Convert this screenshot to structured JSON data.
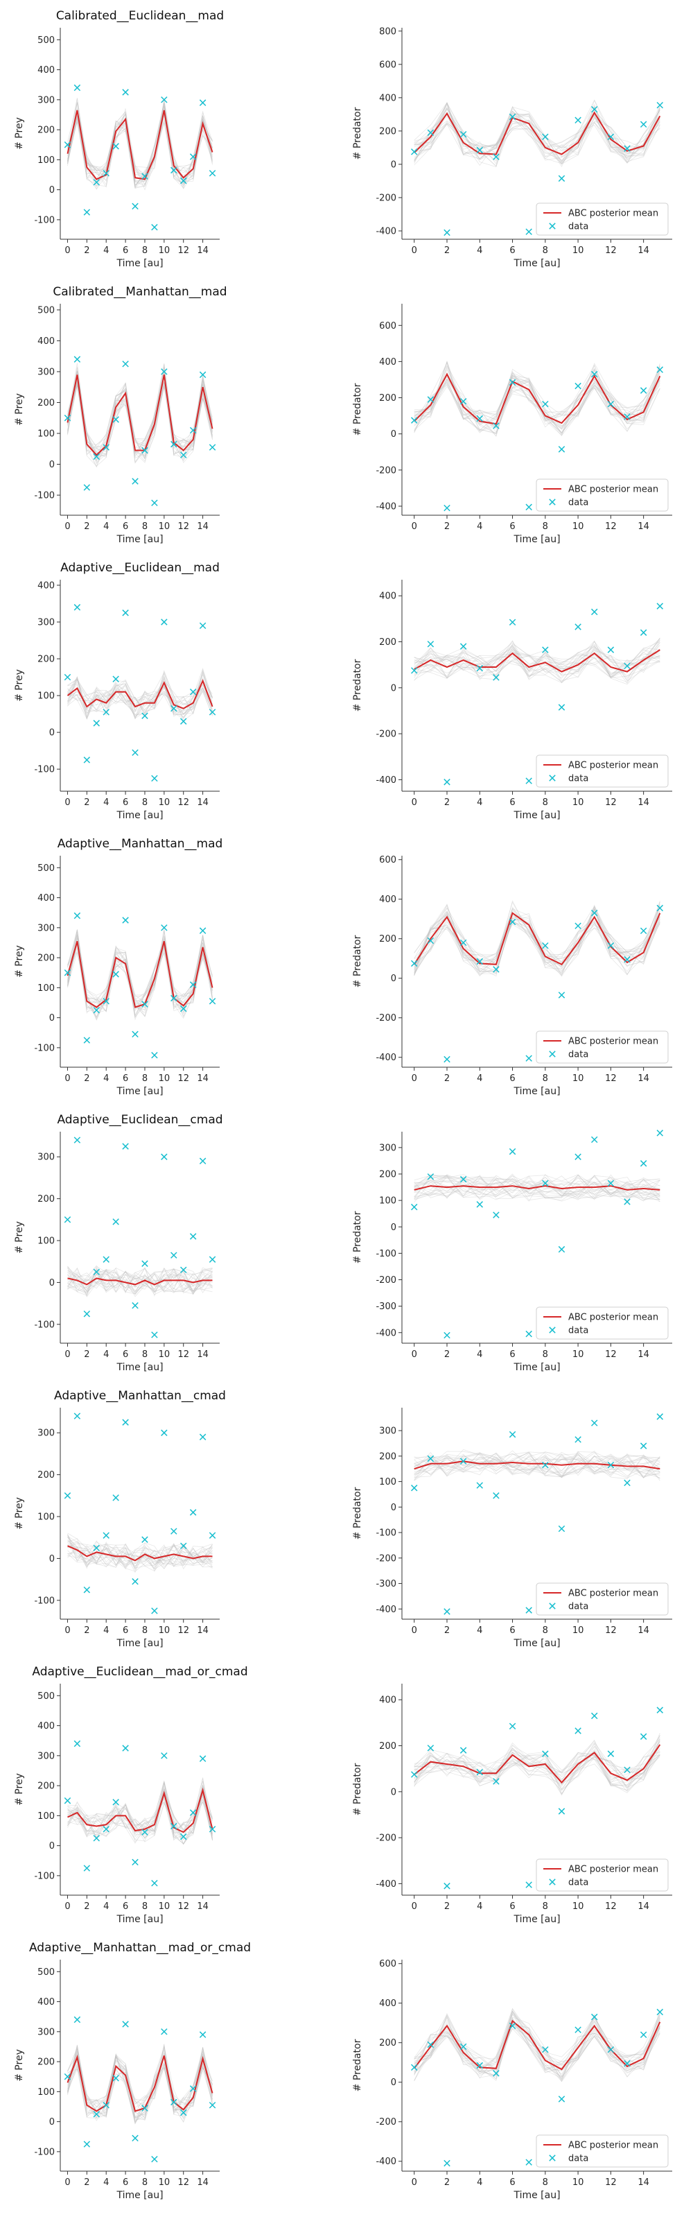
{
  "figure": {
    "title": ""
  },
  "colors": {
    "mean": "#d62728",
    "data": "#17becf",
    "ensemble": "#bdbdbd",
    "axis": "#333333"
  },
  "legend": {
    "mean_label": "ABC posterior mean",
    "data_label": "data"
  },
  "chart_data": {
    "type": "line",
    "xlabel": "Time [au]",
    "x": [
      0,
      1,
      2,
      3,
      4,
      5,
      6,
      7,
      8,
      9,
      10,
      11,
      12,
      13,
      14,
      15
    ],
    "xticks": [
      0,
      2,
      4,
      6,
      8,
      10,
      12,
      14
    ],
    "xlim": [
      -0.75,
      15.75
    ],
    "observed": {
      "prey": [
        150,
        340,
        -75,
        25,
        55,
        145,
        325,
        -55,
        45,
        -125,
        300,
        65,
        30,
        110,
        290,
        55
      ],
      "predator": [
        75,
        190,
        -410,
        180,
        85,
        45,
        285,
        -405,
        165,
        -85,
        265,
        330,
        165,
        95,
        240,
        355
      ]
    },
    "rows": [
      {
        "title": "Calibrated__Euclidean__mad",
        "prey": {
          "ylabel": "# Prey",
          "ylim": [
            -165,
            540
          ],
          "yticks": [
            -100,
            0,
            100,
            200,
            300,
            400,
            500
          ],
          "mean": [
            120,
            265,
            75,
            35,
            50,
            195,
            235,
            40,
            35,
            110,
            265,
            80,
            40,
            70,
            220,
            125
          ]
        },
        "predator": {
          "ylabel": "# Predator",
          "ylim": [
            -450,
            820
          ],
          "yticks": [
            -400,
            -200,
            0,
            200,
            400,
            600,
            800
          ],
          "mean": [
            70,
            165,
            305,
            130,
            65,
            60,
            280,
            245,
            100,
            60,
            130,
            310,
            150,
            80,
            110,
            290
          ]
        }
      },
      {
        "title": "Calibrated__Manhattan__mad",
        "prey": {
          "ylabel": "# Prey",
          "ylim": [
            -165,
            520
          ],
          "yticks": [
            -100,
            0,
            100,
            200,
            300,
            400,
            500
          ],
          "mean": [
            135,
            290,
            65,
            30,
            60,
            185,
            230,
            45,
            45,
            130,
            290,
            70,
            45,
            80,
            250,
            115
          ]
        },
        "predator": {
          "ylabel": "# Predator",
          "ylim": [
            -450,
            720
          ],
          "yticks": [
            -400,
            -200,
            0,
            200,
            400,
            600
          ],
          "mean": [
            70,
            160,
            330,
            150,
            70,
            55,
            290,
            245,
            100,
            60,
            160,
            320,
            160,
            80,
            120,
            320
          ]
        }
      },
      {
        "title": "Adaptive__Euclidean__mad",
        "prey": {
          "ylabel": "# Prey",
          "ylim": [
            -160,
            415
          ],
          "yticks": [
            -100,
            0,
            100,
            200,
            300,
            400
          ],
          "mean": [
            100,
            120,
            70,
            90,
            80,
            110,
            110,
            70,
            80,
            80,
            135,
            75,
            65,
            80,
            140,
            70
          ]
        },
        "predator": {
          "ylabel": "# Predator",
          "ylim": [
            -450,
            470
          ],
          "yticks": [
            -400,
            -200,
            0,
            200,
            400
          ],
          "mean": [
            80,
            120,
            90,
            120,
            90,
            90,
            150,
            90,
            110,
            70,
            100,
            150,
            90,
            70,
            120,
            165
          ]
        }
      },
      {
        "title": "Adaptive__Manhattan__mad",
        "prey": {
          "ylabel": "# Prey",
          "ylim": [
            -165,
            540
          ],
          "yticks": [
            -100,
            0,
            100,
            200,
            300,
            400,
            500
          ],
          "mean": [
            140,
            255,
            55,
            35,
            60,
            200,
            180,
            35,
            45,
            130,
            255,
            65,
            40,
            80,
            235,
            100
          ]
        },
        "predator": {
          "ylabel": "# Predator",
          "ylim": [
            -450,
            620
          ],
          "yticks": [
            -400,
            -200,
            0,
            200,
            400,
            600
          ],
          "mean": [
            70,
            200,
            310,
            150,
            75,
            70,
            330,
            270,
            110,
            70,
            180,
            310,
            160,
            80,
            130,
            330
          ]
        }
      },
      {
        "title": "Adaptive__Euclidean__cmad",
        "prey": {
          "ylabel": "# Prey",
          "ylim": [
            -145,
            360
          ],
          "yticks": [
            -100,
            0,
            100,
            200,
            300
          ],
          "mean": [
            10,
            5,
            -5,
            10,
            5,
            5,
            0,
            -5,
            5,
            -5,
            5,
            5,
            5,
            0,
            5,
            5
          ]
        },
        "predator": {
          "ylabel": "# Predator",
          "ylim": [
            -440,
            360
          ],
          "yticks": [
            -400,
            -300,
            -200,
            -100,
            0,
            100,
            200,
            300
          ],
          "mean": [
            140,
            155,
            150,
            155,
            150,
            150,
            155,
            145,
            155,
            145,
            150,
            150,
            155,
            140,
            145,
            140
          ]
        }
      },
      {
        "title": "Adaptive__Manhattan__cmad",
        "prey": {
          "ylabel": "# Prey",
          "ylim": [
            -145,
            360
          ],
          "yticks": [
            -100,
            0,
            100,
            200,
            300
          ],
          "mean": [
            30,
            20,
            5,
            15,
            10,
            5,
            5,
            -5,
            10,
            0,
            5,
            10,
            5,
            0,
            5,
            5
          ]
        },
        "predator": {
          "ylabel": "# Predator",
          "ylim": [
            -440,
            390
          ],
          "yticks": [
            -400,
            -300,
            -200,
            -100,
            0,
            100,
            200,
            300
          ],
          "mean": [
            150,
            170,
            170,
            180,
            170,
            170,
            175,
            170,
            170,
            165,
            170,
            170,
            165,
            160,
            160,
            150
          ]
        }
      },
      {
        "title": "Adaptive__Euclidean__mad_or_cmad",
        "prey": {
          "ylabel": "# Prey",
          "ylim": [
            -165,
            540
          ],
          "yticks": [
            -100,
            0,
            100,
            200,
            300,
            400,
            500
          ],
          "mean": [
            95,
            110,
            70,
            65,
            70,
            100,
            100,
            50,
            55,
            70,
            175,
            60,
            45,
            75,
            185,
            55
          ]
        },
        "predator": {
          "ylabel": "# Predator",
          "ylim": [
            -450,
            470
          ],
          "yticks": [
            -400,
            -200,
            0,
            200,
            400
          ],
          "mean": [
            75,
            130,
            120,
            110,
            80,
            80,
            160,
            110,
            120,
            40,
            120,
            170,
            80,
            50,
            100,
            205
          ]
        }
      },
      {
        "title": "Adaptive__Manhattan__mad_or_cmad",
        "prey": {
          "ylabel": "# Prey",
          "ylim": [
            -165,
            540
          ],
          "yticks": [
            -100,
            0,
            100,
            200,
            300,
            400,
            500
          ],
          "mean": [
            130,
            215,
            55,
            35,
            55,
            185,
            155,
            35,
            45,
            115,
            220,
            65,
            40,
            80,
            210,
            95
          ]
        },
        "predator": {
          "ylabel": "# Predator",
          "ylim": [
            -450,
            620
          ],
          "yticks": [
            -400,
            -200,
            0,
            200,
            400,
            600
          ],
          "mean": [
            70,
            180,
            285,
            150,
            75,
            70,
            310,
            240,
            110,
            65,
            175,
            285,
            165,
            80,
            120,
            305
          ]
        }
      }
    ]
  }
}
